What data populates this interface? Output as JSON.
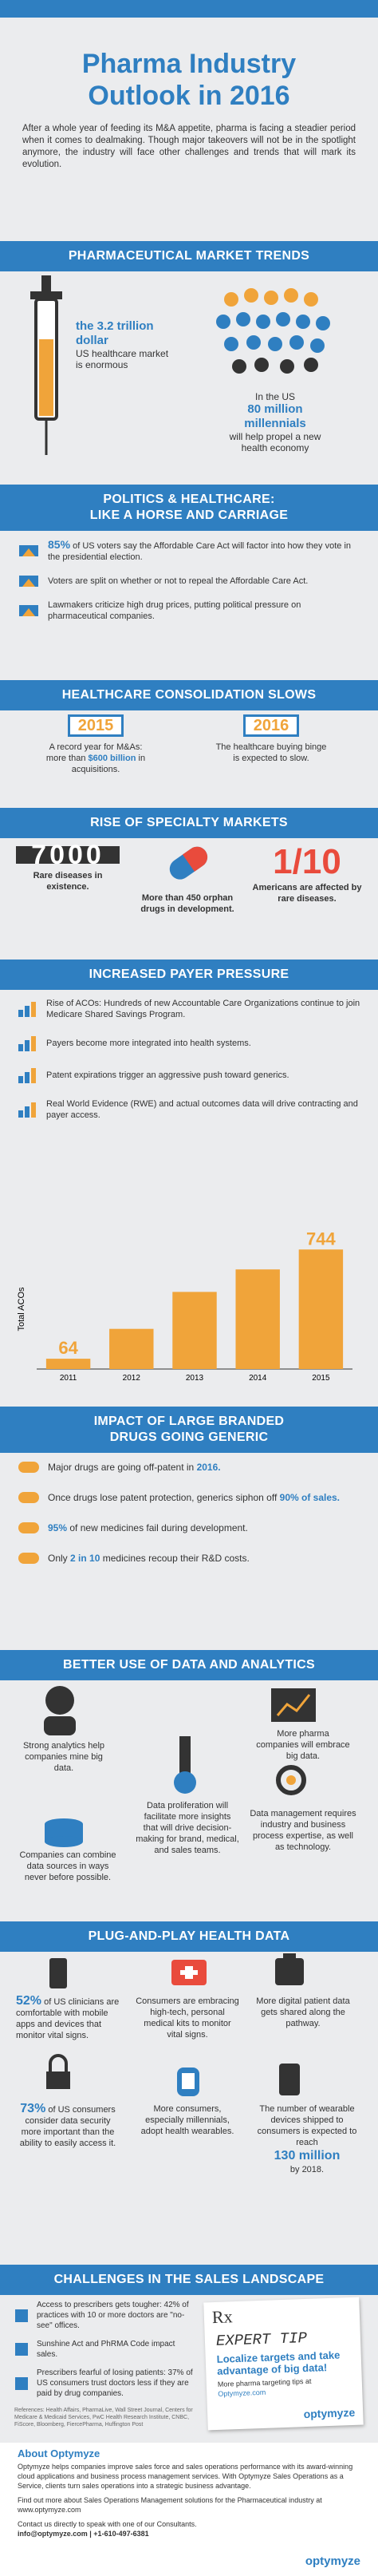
{
  "header": {
    "title_line1": "Pharma Industry",
    "title_line2": "Outlook in 2016",
    "intro": "After a whole year of feeding its M&A appetite, pharma is facing a steadier period when it comes to dealmaking. Though major takeovers will not be in the spotlight anymore, the industry will face other challenges and trends that will mark its evolution."
  },
  "market_trends": {
    "title": "PHARMACEUTICAL MARKET TRENDS",
    "left_highlight": "the 3.2 trillion dollar",
    "left_text": "US healthcare market is enormous",
    "right_intro": "In the US",
    "right_highlight": "80 million millennials",
    "right_text": "will help propel a new health economy"
  },
  "politics": {
    "title_line1": "POLITICS & HEALTHCARE:",
    "title_line2": "LIKE A HORSE AND CARRIAGE",
    "items": [
      {
        "highlight": "85%",
        "text": "of US voters say the Affordable Care Act will factor into how they vote in the presidential election."
      },
      {
        "text": "Voters are split on whether or not to repeal the Affordable Care Act."
      },
      {
        "text": "Lawmakers criticize high drug prices, putting political pressure on pharmaceutical companies."
      }
    ]
  },
  "consolidation": {
    "title": "HEALTHCARE CONSOLIDATION SLOWS",
    "left_year": "2015",
    "left_text": "A record year for M&As: more than",
    "left_highlight": "$600 billion",
    "left_tail": "in acquisitions.",
    "right_year": "2016",
    "right_text": "The healthcare buying binge is expected to slow."
  },
  "specialty": {
    "title": "RISE OF SPECIALTY MARKETS",
    "left_figure": "7000",
    "left_text": "Rare diseases in existence.",
    "middle_text": "More than 450 orphan drugs in development.",
    "right_figure": "1/10",
    "right_text": "Americans are affected by rare diseases."
  },
  "payer": {
    "title": "INCREASED PAYER PRESSURE",
    "items": [
      "Rise of ACOs: Hundreds of new Accountable Care Organizations continue to join Medicare Shared Savings Program.",
      "Payers become more integrated into health systems.",
      "Patent expirations trigger an aggressive push toward generics.",
      "Real World Evidence (RWE) and actual outcomes data will drive contracting and payer access."
    ]
  },
  "aco_chart": {
    "type": "bar",
    "title": "Total ACOs",
    "categories": [
      "2011",
      "2012",
      "2013",
      "2014",
      "2015"
    ],
    "values": [
      64,
      250,
      480,
      620,
      744
    ],
    "ylim": [
      0,
      800
    ],
    "color": "#f0a43a"
  },
  "generic": {
    "title_line1": "IMPACT OF LARGE BRANDED",
    "title_line2": "DRUGS GOING GENERIC",
    "items": [
      {
        "text": "Major drugs are going off-patent in",
        "highlight": "2016."
      },
      {
        "text": "Once drugs lose patent protection, generics siphon off",
        "highlight": "90% of sales."
      },
      {
        "highlight": "95%",
        "text": "of new medicines fail during development."
      },
      {
        "text": "Only",
        "highlight": "2 in 10",
        "tail": "medicines recoup their R&D costs."
      }
    ]
  },
  "analytics": {
    "title": "BETTER USE OF DATA AND ANALYTICS",
    "items": [
      "Strong analytics help companies mine big data.",
      "More pharma companies will embrace big data.",
      "Data proliferation will facilitate more insights that will drive decision-making for brand, medical, and sales teams.",
      "Data management requires industry and business process expertise, as well as technology.",
      "Companies can combine data sources in ways never before possible."
    ]
  },
  "plug_and_play": {
    "title": "PLUG-AND-PLAY HEALTH DATA",
    "items": [
      {
        "highlight": "52%",
        "text": "of US clinicians are comfortable with mobile apps and devices that monitor vital signs."
      },
      {
        "text": "Consumers are embracing high-tech, personal medical kits to monitor vital signs."
      },
      {
        "text": "More digital patient data gets shared along the pathway."
      },
      {
        "highlight": "73%",
        "text": "of US consumers consider data security more important than the ability to easily access it."
      },
      {
        "text": "More consumers, especially millennials, adopt health wearables."
      },
      {
        "text": "The number of wearable devices shipped to consumers is expected to reach",
        "highlight": "130 million",
        "tail": "by 2018."
      }
    ]
  },
  "challenges": {
    "title": "CHALLENGES IN THE SALES LANDSCAPE",
    "items": [
      "Access to prescribers gets tougher: 42% of practices with 10 or more doctors are \"no-see\" offices.",
      "Sunshine Act and PhRMA Code impact sales.",
      "Prescribers fearful of losing patients: 37% of US consumers trust doctors less if they are paid by drug companies."
    ],
    "references": "References: Health Affairs, PharmaLive, Wall Street Journal, Centers for Medicare & Medicaid Services, PwC Health Research Institute, CNBC, FiScore, Bloomberg, FiercePharma, Huffington Post",
    "tip_rx": "Rx",
    "tip_title": "EXPERT TIP",
    "tip_text": "Localize targets and take advantage of big data!",
    "tip_more": "More pharma targeting tips at",
    "tip_link": "Optymyze.com",
    "logo": "optymyze"
  },
  "about": {
    "title": "About Optymyze",
    "p1": "Optymyze helps companies improve sales force and sales operations performance with its award-winning cloud applications and business process management services. With Optymyze Sales Operations as a Service, clients turn sales operations into a strategic business advantage.",
    "p2": "Find out more about Sales Operations Management solutions for the Pharmaceutical industry at www.optymyze.com",
    "p3": "Contact us directly to speak with one of our Consultants.",
    "contact": "info@optymyze.com | +1-610-497-6381",
    "logo": "optymyze"
  }
}
